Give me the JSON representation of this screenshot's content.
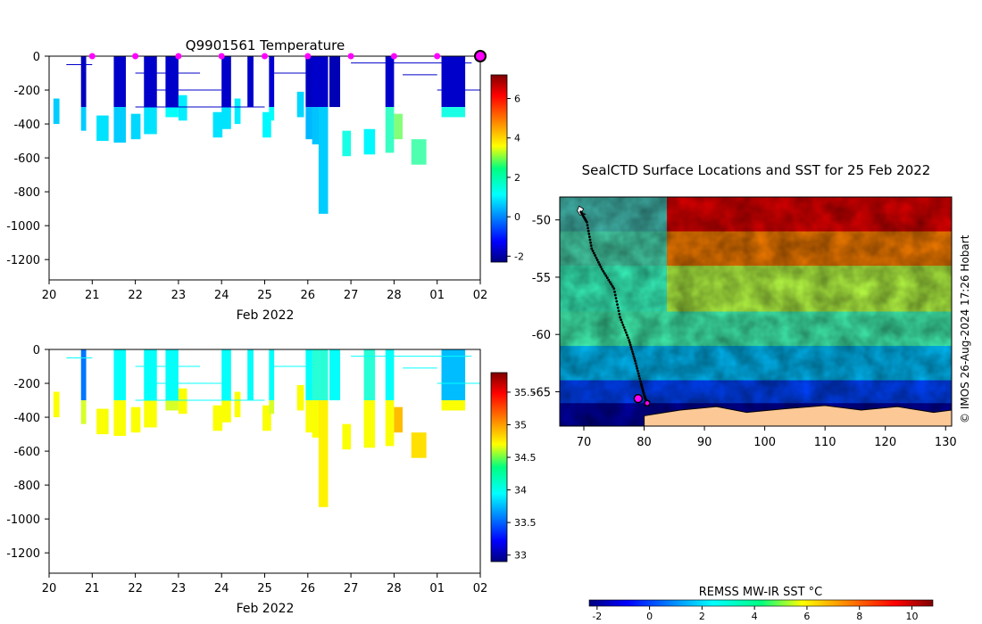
{
  "chart_data": [
    {
      "type": "heatmap",
      "panel": "temperature-section",
      "title": "Q9901561  Temperature",
      "xlabel": "Feb 2022",
      "ylabel": "",
      "x_tick_labels": [
        "20",
        "21",
        "22",
        "23",
        "24",
        "25",
        "26",
        "27",
        "28",
        "01",
        "02"
      ],
      "x_range_days": [
        20,
        30
      ],
      "y_ticks": [
        0,
        -200,
        -400,
        -600,
        -800,
        -1000,
        -1200
      ],
      "ylim": [
        -1320,
        0
      ],
      "profile_dates": [
        21,
        22,
        23,
        24,
        25,
        26,
        27,
        28,
        29
      ],
      "end_marker_day": 30,
      "colorbar": {
        "min": -2.3,
        "max": 7.2,
        "ticks": [
          -2,
          0,
          2,
          4,
          6
        ],
        "colormap": "jet"
      },
      "profiles": [
        {
          "day": 20.1,
          "width": 0.14,
          "depth": 400,
          "surface": null,
          "deep": 0.8
        },
        {
          "day": 20.74,
          "width": 0.12,
          "depth": 440,
          "surface": -1.7,
          "deep": 0.8
        },
        {
          "day": 21.1,
          "width": 0.28,
          "depth": 500,
          "surface": null,
          "deep": 1.0
        },
        {
          "day": 21.5,
          "width": 0.28,
          "depth": 510,
          "surface": -1.6,
          "deep": 0.8
        },
        {
          "day": 21.9,
          "width": 0.22,
          "depth": 490,
          "surface": null,
          "deep": 0.9
        },
        {
          "day": 22.2,
          "width": 0.3,
          "depth": 460,
          "surface": -1.6,
          "deep": 1.0
        },
        {
          "day": 22.7,
          "width": 0.3,
          "depth": 360,
          "surface": -1.6,
          "deep": 1.3
        },
        {
          "day": 23.0,
          "width": 0.2,
          "depth": 380,
          "surface": null,
          "deep": 1.1
        },
        {
          "day": 23.8,
          "width": 0.22,
          "depth": 480,
          "surface": null,
          "deep": 1.0
        },
        {
          "day": 24.0,
          "width": 0.22,
          "depth": 430,
          "surface": -1.6,
          "deep": 1.0
        },
        {
          "day": 24.3,
          "width": 0.14,
          "depth": 400,
          "surface": null,
          "deep": 1.1
        },
        {
          "day": 24.6,
          "width": 0.14,
          "depth": 300,
          "surface": -1.6,
          "deep": null
        },
        {
          "day": 24.95,
          "width": 0.2,
          "depth": 480,
          "surface": null,
          "deep": 1.2
        },
        {
          "day": 25.1,
          "width": 0.12,
          "depth": 380,
          "surface": -1.5,
          "deep": 1.3
        },
        {
          "day": 25.75,
          "width": 0.16,
          "depth": 360,
          "surface": null,
          "deep": 0.9
        },
        {
          "day": 25.95,
          "width": 0.16,
          "depth": 490,
          "surface": -1.7,
          "deep": 0.6
        },
        {
          "day": 26.1,
          "width": 0.2,
          "depth": 520,
          "surface": -1.6,
          "deep": 0.7
        },
        {
          "day": 26.25,
          "width": 0.22,
          "depth": 930,
          "surface": -1.6,
          "deep": 0.8
        },
        {
          "day": 26.5,
          "width": 0.25,
          "depth": 300,
          "surface": -1.8,
          "deep": null
        },
        {
          "day": 26.8,
          "width": 0.2,
          "depth": 590,
          "surface": null,
          "deep": 1.5
        },
        {
          "day": 27.3,
          "width": 0.26,
          "depth": 580,
          "surface": null,
          "deep": 1.2
        },
        {
          "day": 27.8,
          "width": 0.2,
          "depth": 570,
          "surface": -1.6,
          "deep": 1.8
        },
        {
          "day": 28.0,
          "width": 0.2,
          "depth": 490,
          "surface": null,
          "deep": 2.5
        },
        {
          "day": 28.4,
          "width": 0.35,
          "depth": 640,
          "surface": null,
          "deep": 2.0
        },
        {
          "day": 29.1,
          "width": 0.55,
          "depth": 360,
          "surface": -1.6,
          "deep": 1.5
        }
      ]
    },
    {
      "type": "heatmap",
      "panel": "salinity-section",
      "title": "",
      "xlabel": "Feb 2022",
      "ylabel": "",
      "x_tick_labels": [
        "20",
        "21",
        "22",
        "23",
        "24",
        "25",
        "26",
        "27",
        "28",
        "01",
        "02"
      ],
      "x_range_days": [
        20,
        30
      ],
      "y_ticks": [
        0,
        -200,
        -400,
        -600,
        -800,
        -1000,
        -1200
      ],
      "ylim": [
        -1320,
        0
      ],
      "colorbar": {
        "min": 32.9,
        "max": 35.8,
        "ticks": [
          33,
          33.5,
          34,
          34.5,
          35,
          35.5
        ],
        "colormap": "jet"
      },
      "profiles": [
        {
          "day": 20.1,
          "width": 0.14,
          "depth": 400,
          "surface": null,
          "deep": 34.7
        },
        {
          "day": 20.74,
          "width": 0.12,
          "depth": 440,
          "surface": 33.6,
          "deep": 34.6
        },
        {
          "day": 21.1,
          "width": 0.28,
          "depth": 500,
          "surface": null,
          "deep": 34.7
        },
        {
          "day": 21.5,
          "width": 0.28,
          "depth": 510,
          "surface": 34.0,
          "deep": 34.7
        },
        {
          "day": 21.9,
          "width": 0.22,
          "depth": 490,
          "surface": null,
          "deep": 34.7
        },
        {
          "day": 22.2,
          "width": 0.3,
          "depth": 460,
          "surface": 34.0,
          "deep": 34.7
        },
        {
          "day": 22.7,
          "width": 0.3,
          "depth": 360,
          "surface": 34.0,
          "deep": 34.6
        },
        {
          "day": 23.0,
          "width": 0.2,
          "depth": 380,
          "surface": null,
          "deep": 34.7
        },
        {
          "day": 23.8,
          "width": 0.22,
          "depth": 480,
          "surface": null,
          "deep": 34.7
        },
        {
          "day": 24.0,
          "width": 0.22,
          "depth": 430,
          "surface": 34.0,
          "deep": 34.7
        },
        {
          "day": 24.3,
          "width": 0.14,
          "depth": 400,
          "surface": null,
          "deep": 34.7
        },
        {
          "day": 24.6,
          "width": 0.14,
          "depth": 300,
          "surface": 34.0,
          "deep": null
        },
        {
          "day": 24.95,
          "width": 0.2,
          "depth": 480,
          "surface": null,
          "deep": 34.7
        },
        {
          "day": 25.1,
          "width": 0.12,
          "depth": 380,
          "surface": 34.0,
          "deep": 34.6
        },
        {
          "day": 25.75,
          "width": 0.16,
          "depth": 360,
          "surface": null,
          "deep": 34.7
        },
        {
          "day": 25.95,
          "width": 0.16,
          "depth": 490,
          "surface": 34.0,
          "deep": 34.7
        },
        {
          "day": 26.1,
          "width": 0.2,
          "depth": 520,
          "surface": 34.1,
          "deep": 34.7
        },
        {
          "day": 26.25,
          "width": 0.22,
          "depth": 930,
          "surface": 34.1,
          "deep": 34.75
        },
        {
          "day": 26.5,
          "width": 0.25,
          "depth": 300,
          "surface": 34.0,
          "deep": null
        },
        {
          "day": 26.8,
          "width": 0.2,
          "depth": 590,
          "surface": null,
          "deep": 34.7
        },
        {
          "day": 27.3,
          "width": 0.26,
          "depth": 580,
          "surface": 34.1,
          "deep": 34.7
        },
        {
          "day": 27.8,
          "width": 0.2,
          "depth": 570,
          "surface": 34.0,
          "deep": 34.7
        },
        {
          "day": 28.0,
          "width": 0.2,
          "depth": 490,
          "surface": null,
          "deep": 34.9
        },
        {
          "day": 28.4,
          "width": 0.35,
          "depth": 640,
          "surface": null,
          "deep": 34.8
        },
        {
          "day": 29.1,
          "width": 0.55,
          "depth": 360,
          "surface": 33.8,
          "deep": 34.7
        }
      ]
    },
    {
      "type": "heatmap",
      "panel": "sst-map",
      "title": "SealCTD Surface Locations and SST for 25 Feb 2022",
      "x_ticks": [
        70,
        80,
        90,
        100,
        110,
        120,
        130
      ],
      "xlim": [
        66,
        131
      ],
      "y_ticks": [
        -50,
        -55,
        -60,
        -65
      ],
      "ylim": [
        -68,
        -48
      ],
      "colorbar": {
        "label": "REMSS MW-IR SST °C",
        "min": -2.3,
        "max": 10.8,
        "ticks": [
          -2,
          0,
          2,
          4,
          6,
          8,
          10
        ],
        "colormap": "jet"
      },
      "sst_field_bands": [
        {
          "lat": -48,
          "sst": 9.5
        },
        {
          "lat": -51,
          "sst": 7.5
        },
        {
          "lat": -54,
          "sst": 5.0
        },
        {
          "lat": -58,
          "sst": 3.5
        },
        {
          "lat": -61,
          "sst": 1.8
        },
        {
          "lat": -64,
          "sst": 0.2
        },
        {
          "lat": -66,
          "sst": -1.8
        }
      ],
      "track": [
        {
          "lon": 69.5,
          "lat": -49.3
        },
        {
          "lon": 70.5,
          "lat": -50.2
        },
        {
          "lon": 71.3,
          "lat": -52.5
        },
        {
          "lon": 73.0,
          "lat": -54.3
        },
        {
          "lon": 75.0,
          "lat": -56.0
        },
        {
          "lon": 76.0,
          "lat": -58.5
        },
        {
          "lon": 77.5,
          "lat": -60.5
        },
        {
          "lon": 78.5,
          "lat": -62.3
        },
        {
          "lon": 79.5,
          "lat": -64.3
        },
        {
          "lon": 80.0,
          "lat": -65.3
        },
        {
          "lon": 80.5,
          "lat": -66.0
        }
      ],
      "highlight_positions": [
        {
          "lon": 79.0,
          "lat": -65.6
        },
        {
          "lon": 80.5,
          "lat": -66.0
        }
      ],
      "credit": "© IMOS 26-Aug-2024 17:26 Hobart"
    }
  ]
}
